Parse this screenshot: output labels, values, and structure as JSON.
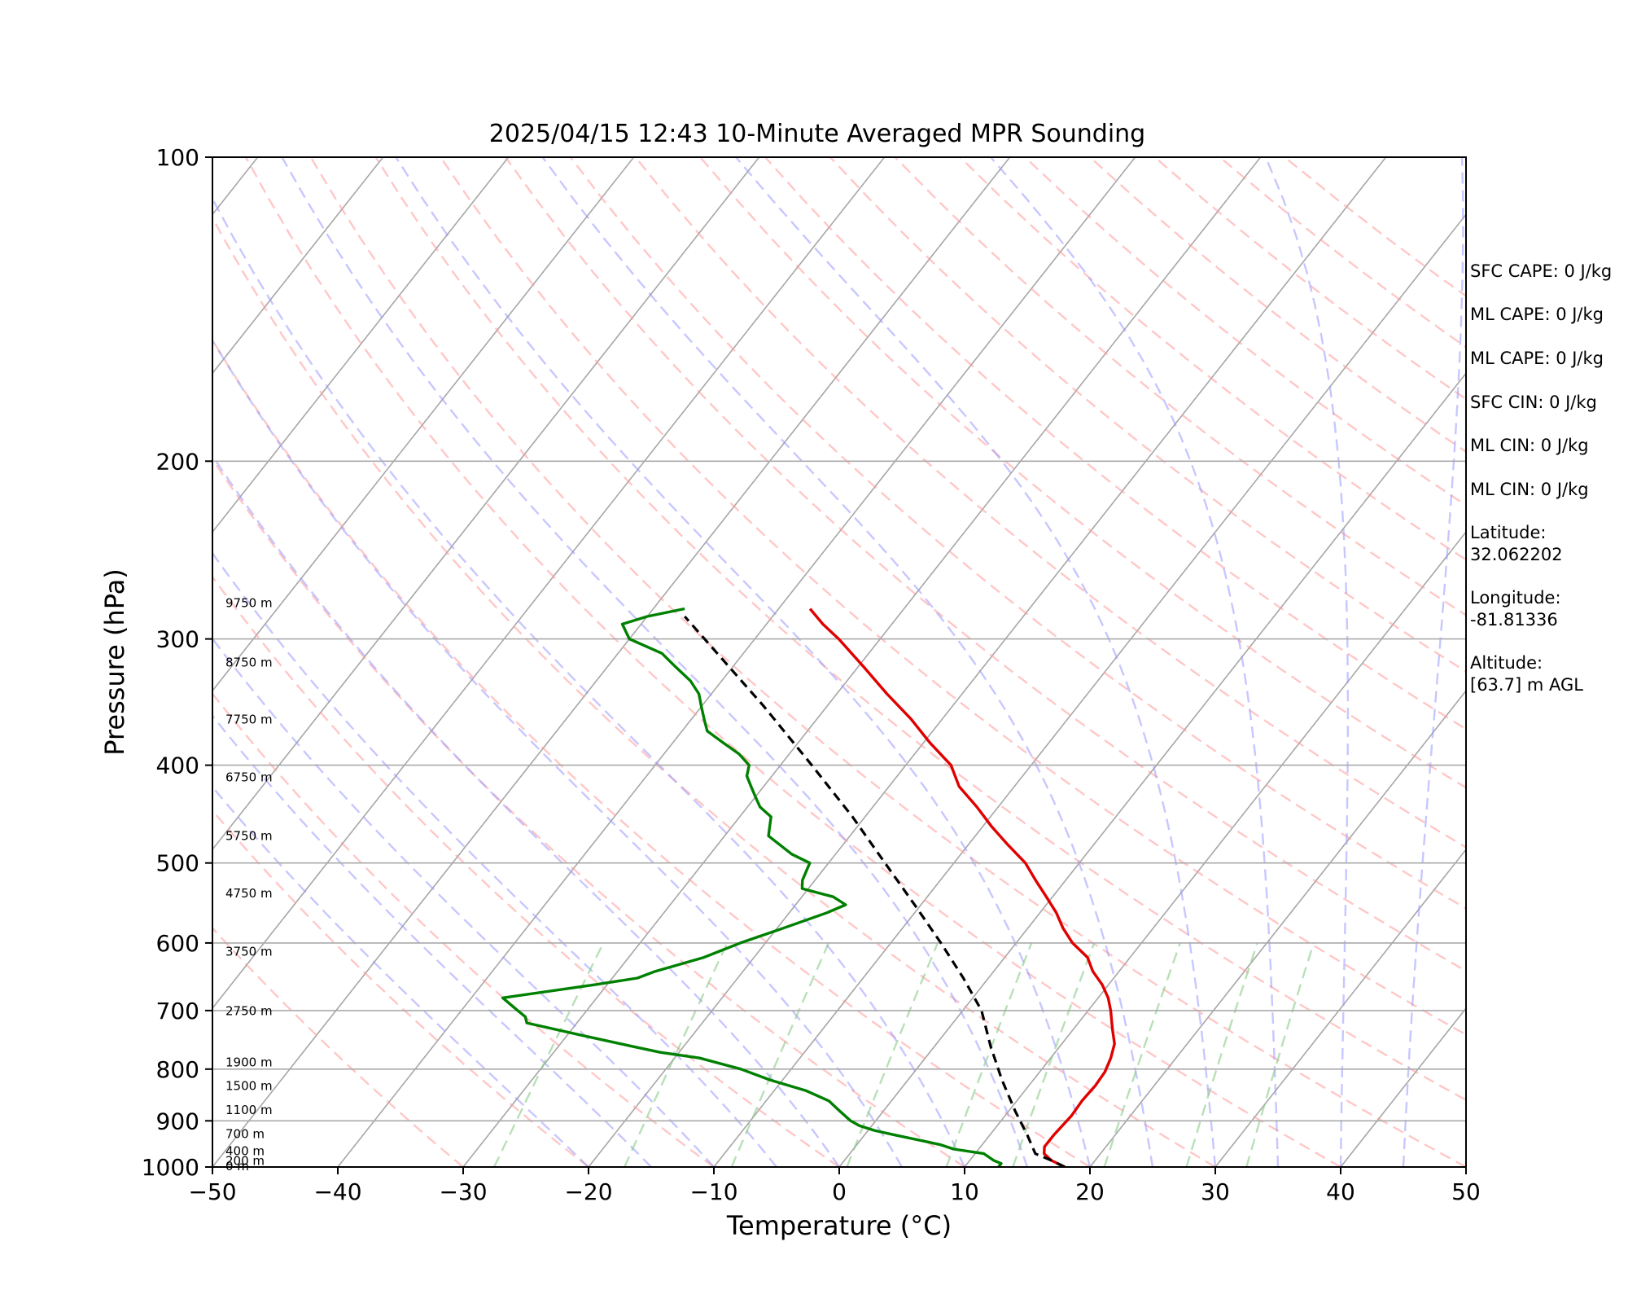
{
  "chart_data": {
    "type": "line",
    "title": "2025/04/15 12:43 10-Minute Averaged MPR Sounding",
    "xlabel": "Temperature (°C)",
    "ylabel": "Pressure (hPa)",
    "xlim": [
      -50,
      50
    ],
    "ylim": [
      1000,
      100
    ],
    "y_scale": "log",
    "skew": "skew-T log-p",
    "x_ticks": [
      "−50",
      "−40",
      "−30",
      "−20",
      "−10",
      "0",
      "10",
      "20",
      "30",
      "40",
      "50"
    ],
    "y_ticks": [
      "100",
      "200",
      "300",
      "400",
      "500",
      "600",
      "700",
      "800",
      "900",
      "1000"
    ],
    "grid": true,
    "series": [
      {
        "role": "temperature",
        "color": "#e00000",
        "points": [
          [
            18.0,
            1000
          ],
          [
            16.5,
            985
          ],
          [
            15.5,
            970
          ],
          [
            15.1,
            955
          ],
          [
            15.1,
            930
          ],
          [
            15.2,
            910
          ],
          [
            15.3,
            890
          ],
          [
            15.2,
            860
          ],
          [
            15.3,
            830
          ],
          [
            15.2,
            805
          ],
          [
            14.8,
            780
          ],
          [
            14.2,
            755
          ],
          [
            13.1,
            730
          ],
          [
            11.8,
            700
          ],
          [
            10.8,
            680
          ],
          [
            9.5,
            660
          ],
          [
            7.9,
            640
          ],
          [
            6.6,
            620
          ],
          [
            4.5,
            600
          ],
          [
            2.8,
            580
          ],
          [
            1.3,
            560
          ],
          [
            -0.5,
            540
          ],
          [
            -2.4,
            520
          ],
          [
            -4.3,
            500
          ],
          [
            -6.8,
            480
          ],
          [
            -9.3,
            460
          ],
          [
            -11.7,
            440
          ],
          [
            -14.4,
            420
          ],
          [
            -16.4,
            400
          ],
          [
            -19.5,
            380
          ],
          [
            -22.5,
            360
          ],
          [
            -26.0,
            340
          ],
          [
            -29.5,
            320
          ],
          [
            -33.3,
            300
          ],
          [
            -35.5,
            290
          ],
          [
            -37.5,
            280
          ]
        ]
      },
      {
        "role": "dewpoint",
        "color": "#008000",
        "points": [
          [
            12.7,
            1000
          ],
          [
            12.7,
            992
          ],
          [
            11.9,
            985
          ],
          [
            10.7,
            970
          ],
          [
            8.0,
            960
          ],
          [
            6.6,
            950
          ],
          [
            2.5,
            930
          ],
          [
            0.5,
            920
          ],
          [
            -1.0,
            910
          ],
          [
            -2.0,
            900
          ],
          [
            -3.5,
            880
          ],
          [
            -5.0,
            860
          ],
          [
            -7.5,
            840
          ],
          [
            -11.0,
            820
          ],
          [
            -14.0,
            800
          ],
          [
            -18.0,
            780
          ],
          [
            -21.5,
            770
          ],
          [
            -24.0,
            760
          ],
          [
            -29.0,
            740
          ],
          [
            -34.0,
            720
          ],
          [
            -34.5,
            710
          ],
          [
            -35.5,
            700
          ],
          [
            -37.5,
            680
          ],
          [
            -31.0,
            660
          ],
          [
            -28.0,
            650
          ],
          [
            -27.0,
            640
          ],
          [
            -24.0,
            620
          ],
          [
            -22.0,
            600
          ],
          [
            -19.5,
            580
          ],
          [
            -17.0,
            560
          ],
          [
            -16.0,
            550
          ],
          [
            -17.5,
            540
          ],
          [
            -20.5,
            530
          ],
          [
            -21.0,
            520
          ],
          [
            -21.5,
            500
          ],
          [
            -23.5,
            490
          ],
          [
            -26.5,
            470
          ],
          [
            -27.0,
            460
          ],
          [
            -27.5,
            450
          ],
          [
            -29.0,
            440
          ],
          [
            -30.0,
            430
          ],
          [
            -31.0,
            420
          ],
          [
            -32.0,
            410
          ],
          [
            -32.5,
            400
          ],
          [
            -34.0,
            390
          ],
          [
            -36.0,
            380
          ],
          [
            -38.0,
            370
          ],
          [
            -39.0,
            360
          ],
          [
            -40.0,
            350
          ],
          [
            -41.0,
            340
          ],
          [
            -42.5,
            330
          ],
          [
            -44.5,
            320
          ],
          [
            -46.5,
            310
          ],
          [
            -50.0,
            300
          ],
          [
            -51.5,
            290
          ],
          [
            -50.0,
            285
          ],
          [
            -47.5,
            280
          ]
        ]
      },
      {
        "role": "parcel",
        "color": "#000000",
        "style": "dashed",
        "points": [
          [
            18.0,
            1000
          ],
          [
            16.5,
            985
          ],
          [
            14.8,
            970
          ],
          [
            13.0,
            930
          ],
          [
            10.5,
            880
          ],
          [
            7.5,
            820
          ],
          [
            4.5,
            760
          ],
          [
            1.5,
            700
          ],
          [
            -2.0,
            650
          ],
          [
            -6.0,
            600
          ],
          [
            -10.5,
            550
          ],
          [
            -15.5,
            500
          ],
          [
            -21.0,
            450
          ],
          [
            -27.5,
            400
          ],
          [
            -35.0,
            350
          ],
          [
            -44.0,
            300
          ],
          [
            -47.0,
            285
          ]
        ]
      }
    ],
    "background_lines": {
      "dry_adiabats_color": "#ff9999",
      "moist_adiabats_color": "#9999ff",
      "mixing_ratio_color": "#88cc88",
      "isotherms_color": "#888888"
    },
    "height_labels": [
      {
        "text": "9750 m",
        "p": 277
      },
      {
        "text": "8750 m",
        "p": 317
      },
      {
        "text": "7750 m",
        "p": 361
      },
      {
        "text": "6750 m",
        "p": 412
      },
      {
        "text": "5750 m",
        "p": 471
      },
      {
        "text": "4750 m",
        "p": 537
      },
      {
        "text": "3750 m",
        "p": 613
      },
      {
        "text": "2750 m",
        "p": 702
      },
      {
        "text": "1900 m",
        "p": 789
      },
      {
        "text": "1500 m",
        "p": 833
      },
      {
        "text": "1100 m",
        "p": 880
      },
      {
        "text": "700 m",
        "p": 929
      },
      {
        "text": "400 m",
        "p": 966
      },
      {
        "text": "200 m",
        "p": 988
      },
      {
        "text": "0 m",
        "p": 1000
      }
    ],
    "annotations": [
      "SFC CAPE: 0 J/kg",
      "ML CAPE: 0 J/kg",
      "ML CAPE: 0 J/kg",
      "SFC CIN: 0 J/kg",
      "ML CIN: 0 J/kg",
      "ML CIN: 0 J/kg",
      "Latitude:\n32.062202",
      "Longitude:\n-81.81336",
      "Altitude:\n[63.7] m AGL"
    ]
  }
}
